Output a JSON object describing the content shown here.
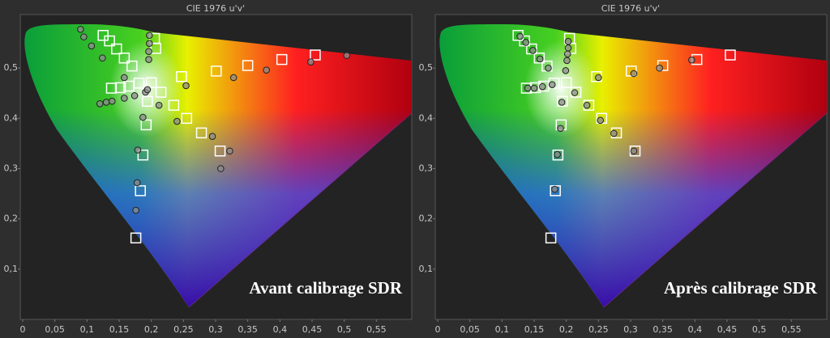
{
  "chart_data": [
    {
      "type": "scatter",
      "title": "CIE 1976 u'v'",
      "annotation": "Avant calibrage SDR",
      "xlim": [
        0,
        0.6
      ],
      "ylim": [
        0,
        0.6
      ],
      "xticks": [
        0,
        {
          "value": 0.05,
          "label": "0,05"
        },
        {
          "value": 0.1,
          "label": "0,1"
        },
        {
          "value": 0.15,
          "label": "0,15"
        },
        {
          "value": 0.2,
          "label": "0,2"
        },
        {
          "value": 0.25,
          "label": "0,25"
        },
        {
          "value": 0.3,
          "label": "0,3"
        },
        {
          "value": 0.35,
          "label": "0,35"
        },
        {
          "value": 0.4,
          "label": "0,4"
        },
        {
          "value": 0.45,
          "label": "0,45"
        },
        {
          "value": 0.5,
          "label": "0,5"
        },
        {
          "value": 0.55,
          "label": "0,55"
        }
      ],
      "yticks": [
        {
          "value": 0.1,
          "label": "0,1"
        },
        {
          "value": 0.2,
          "label": "0,2"
        },
        {
          "value": 0.3,
          "label": "0,3"
        },
        {
          "value": 0.4,
          "label": "0,4"
        },
        {
          "value": 0.5,
          "label": "0,5"
        }
      ],
      "series": [
        {
          "marker": "square",
          "color": "#ffffff",
          "x": [
            0.125,
            0.135,
            0.146,
            0.158,
            0.17,
            0.138,
            0.152,
            0.165,
            0.181,
            0.205,
            0.207,
            0.2,
            0.194,
            0.215,
            0.192,
            0.187,
            0.183,
            0.176,
            0.247,
            0.301,
            0.35,
            0.403,
            0.455,
            0.235,
            0.255,
            0.278,
            0.307
          ],
          "values": [
            0.565,
            0.554,
            0.538,
            0.52,
            0.504,
            0.46,
            0.461,
            0.464,
            0.47,
            0.559,
            0.539,
            0.471,
            0.434,
            0.452,
            0.387,
            0.327,
            0.256,
            0.162,
            0.483,
            0.494,
            0.505,
            0.517,
            0.526,
            0.426,
            0.4,
            0.371,
            0.335
          ]
        },
        {
          "marker": "circle",
          "color": "#8c8c8c",
          "x": [
            0.09,
            0.095,
            0.107,
            0.124,
            0.158,
            0.12,
            0.13,
            0.139,
            0.158,
            0.174,
            0.191,
            0.197,
            0.197,
            0.196,
            0.196,
            0.194,
            0.187,
            0.179,
            0.178,
            0.176,
            0.212,
            0.24,
            0.254,
            0.328,
            0.379,
            0.448,
            0.504,
            0.295,
            0.322,
            0.308
          ],
          "values": [
            0.577,
            0.562,
            0.544,
            0.52,
            0.481,
            0.429,
            0.432,
            0.434,
            0.44,
            0.445,
            0.452,
            0.565,
            0.549,
            0.533,
            0.517,
            0.457,
            0.402,
            0.337,
            0.272,
            0.217,
            0.426,
            0.394,
            0.465,
            0.481,
            0.496,
            0.512,
            0.525,
            0.364,
            0.335,
            0.3
          ]
        }
      ]
    },
    {
      "type": "scatter",
      "title": "CIE 1976 u'v'",
      "annotation": "Après calibrage SDR",
      "xlim": [
        0,
        0.6
      ],
      "ylim": [
        0,
        0.6
      ],
      "xticks": [
        0,
        {
          "value": 0.05,
          "label": "0,05"
        },
        {
          "value": 0.1,
          "label": "0,1"
        },
        {
          "value": 0.15,
          "label": "0,15"
        },
        {
          "value": 0.2,
          "label": "0,2"
        },
        {
          "value": 0.25,
          "label": "0,25"
        },
        {
          "value": 0.3,
          "label": "0,3"
        },
        {
          "value": 0.35,
          "label": "0,35"
        },
        {
          "value": 0.4,
          "label": "0,4"
        },
        {
          "value": 0.45,
          "label": "0,45"
        },
        {
          "value": 0.5,
          "label": "0,5"
        },
        {
          "value": 0.55,
          "label": "0,55"
        }
      ],
      "yticks": [
        {
          "value": 0.1,
          "label": "0,1"
        },
        {
          "value": 0.2,
          "label": "0,2"
        },
        {
          "value": 0.3,
          "label": "0,3"
        },
        {
          "value": 0.4,
          "label": "0,4"
        },
        {
          "value": 0.5,
          "label": "0,5"
        }
      ],
      "series": [
        {
          "marker": "square",
          "color": "#ffffff",
          "x": [
            0.125,
            0.135,
            0.146,
            0.158,
            0.17,
            0.138,
            0.152,
            0.165,
            0.181,
            0.205,
            0.207,
            0.2,
            0.194,
            0.215,
            0.192,
            0.187,
            0.183,
            0.176,
            0.247,
            0.301,
            0.35,
            0.403,
            0.455,
            0.235,
            0.255,
            0.278,
            0.307
          ],
          "values": [
            0.565,
            0.554,
            0.538,
            0.52,
            0.504,
            0.46,
            0.461,
            0.464,
            0.47,
            0.559,
            0.539,
            0.471,
            0.434,
            0.452,
            0.387,
            0.327,
            0.256,
            0.162,
            0.483,
            0.494,
            0.505,
            0.517,
            0.526,
            0.426,
            0.4,
            0.371,
            0.335
          ]
        },
        {
          "marker": "circle",
          "color": "#8c8c8c",
          "x": [
            0.128,
            0.137,
            0.148,
            0.159,
            0.172,
            0.14,
            0.15,
            0.163,
            0.178,
            0.203,
            0.203,
            0.202,
            0.201,
            0.199,
            0.193,
            0.213,
            0.191,
            0.186,
            0.182,
            0.232,
            0.253,
            0.274,
            0.305,
            0.25,
            0.305,
            0.345,
            0.395
          ],
          "values": [
            0.563,
            0.551,
            0.535,
            0.518,
            0.5,
            0.46,
            0.46,
            0.463,
            0.467,
            0.553,
            0.54,
            0.528,
            0.515,
            0.495,
            0.432,
            0.451,
            0.38,
            0.328,
            0.259,
            0.426,
            0.396,
            0.37,
            0.335,
            0.481,
            0.489,
            0.5,
            0.516
          ]
        }
      ]
    }
  ]
}
